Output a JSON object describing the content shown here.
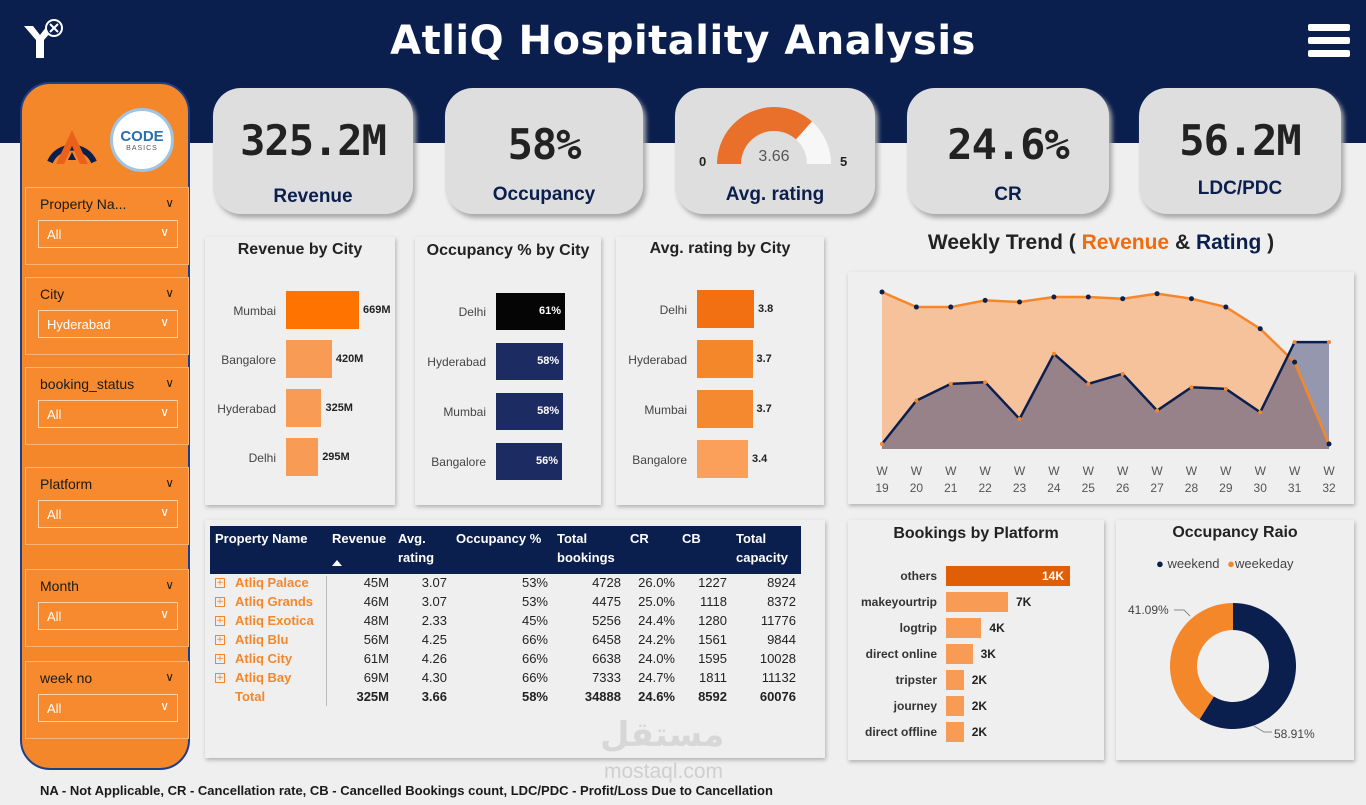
{
  "header": {
    "title": "AtliQ Hospitality Analysis"
  },
  "filters": [
    {
      "label": "Property Na...",
      "value": "All"
    },
    {
      "label": "City",
      "value": "Hyderabad"
    },
    {
      "label": "booking_status",
      "value": "All"
    },
    {
      "label": "Platform",
      "value": "All"
    },
    {
      "label": "Month",
      "value": "All"
    },
    {
      "label": "week no",
      "value": "All"
    }
  ],
  "sidebar": {
    "logo_text": "CODE",
    "logo_sub": "BASICS"
  },
  "kpis": {
    "revenue": {
      "value": "325.2M",
      "label": "Revenue"
    },
    "occupancy": {
      "value": "58%",
      "label": "Occupancy"
    },
    "rating": {
      "value": "3.66",
      "label": "Avg. rating",
      "min": "0",
      "max": "5",
      "fraction": 0.732
    },
    "cr": {
      "value": "24.6%",
      "label": "CR"
    },
    "ldc": {
      "value": "56.2M",
      "label": "LDC/PDC"
    }
  },
  "colors": {
    "navy": "#0b1f4f",
    "orange": "#f5872b",
    "orange_dark": "#f26b0c"
  },
  "chart_data": [
    {
      "type": "bar",
      "title": "Revenue by City",
      "categories": [
        "Mumbai",
        "Bangalore",
        "Hyderabad",
        "Delhi"
      ],
      "values": [
        669,
        420,
        325,
        295
      ],
      "labels": [
        "669M",
        "420M",
        "325M",
        "295M"
      ]
    },
    {
      "type": "bar",
      "title": "Occupancy % by City",
      "categories": [
        "Delhi",
        "Hyderabad",
        "Mumbai",
        "Bangalore"
      ],
      "values": [
        61,
        58,
        58,
        56
      ],
      "labels": [
        "61%",
        "58%",
        "58%",
        "56%"
      ]
    },
    {
      "type": "bar",
      "title": "Avg. rating by City",
      "categories": [
        "Delhi",
        "Hyderabad",
        "Mumbai",
        "Bangalore"
      ],
      "values": [
        3.8,
        3.7,
        3.7,
        3.4
      ],
      "labels": [
        "3.8",
        "3.7",
        "3.7",
        "3.4"
      ]
    },
    {
      "type": "area",
      "title_parts": {
        "a": "Weekly Trend ( ",
        "b": "Revenue",
        "c": " & ",
        "d": "Rating",
        "e": " )"
      },
      "x": [
        "W 19",
        "W 20",
        "W 21",
        "W 22",
        "W 23",
        "W 24",
        "W 25",
        "W 26",
        "W 27",
        "W 28",
        "W 29",
        "W 30",
        "W 31",
        "W 32"
      ],
      "x_top": [
        "W",
        "W",
        "W",
        "W",
        "W",
        "W",
        "W",
        "W",
        "W",
        "W",
        "W",
        "W",
        "W",
        "W"
      ],
      "x_bottom": [
        "19",
        "20",
        "21",
        "22",
        "23",
        "24",
        "25",
        "26",
        "27",
        "28",
        "29",
        "30",
        "31",
        "32"
      ],
      "series": [
        {
          "name": "Revenue",
          "values": [
            94,
            85,
            85,
            89,
            88,
            91,
            91,
            90,
            93,
            90,
            85,
            72,
            52,
            3
          ]
        },
        {
          "name": "Rating",
          "values": [
            3,
            29,
            39,
            40,
            18,
            57,
            39,
            45,
            23,
            37,
            36,
            22,
            64,
            64
          ]
        }
      ],
      "ylim": [
        0,
        100
      ]
    },
    {
      "type": "bar",
      "title": "Bookings by Platform",
      "categories": [
        "others",
        "makeyourtrip",
        "logtrip",
        "direct online",
        "tripster",
        "journey",
        "direct offline"
      ],
      "values": [
        14,
        7,
        4,
        3,
        2,
        2,
        2
      ],
      "labels": [
        "14K",
        "7K",
        "4K",
        "3K",
        "2K",
        "2K",
        "2K"
      ]
    },
    {
      "type": "pie",
      "title": "Occupancy Raio",
      "legend": [
        "weekend",
        "weekeday"
      ],
      "values": [
        58.91,
        41.09
      ],
      "labels": [
        "58.91%",
        "41.09%"
      ]
    }
  ],
  "table": {
    "headers": [
      "Property Name",
      "Revenue",
      "Avg. rating",
      "Occupancy %",
      "Total bookings",
      "CR",
      "CB",
      "Total capacity"
    ],
    "rows": [
      [
        "Atliq Palace",
        "45M",
        "3.07",
        "53%",
        "4728",
        "26.0%",
        "1227",
        "8924"
      ],
      [
        "Atliq Grands",
        "46M",
        "3.07",
        "53%",
        "4475",
        "25.0%",
        "1118",
        "8372"
      ],
      [
        "Atliq Exotica",
        "48M",
        "2.33",
        "45%",
        "5256",
        "24.4%",
        "1280",
        "11776"
      ],
      [
        "Atliq Blu",
        "56M",
        "4.25",
        "66%",
        "6458",
        "24.2%",
        "1561",
        "9844"
      ],
      [
        "Atliq City",
        "61M",
        "4.26",
        "66%",
        "6638",
        "24.0%",
        "1595",
        "10028"
      ],
      [
        "Atliq Bay",
        "69M",
        "4.30",
        "66%",
        "7333",
        "24.7%",
        "1811",
        "11132"
      ]
    ],
    "total": [
      "Total",
      "325M",
      "3.66",
      "58%",
      "34888",
      "24.6%",
      "8592",
      "60076"
    ]
  },
  "footer": "NA - Not Applicable, CR - Cancellation rate, CB - Cancelled Bookings count, LDC/PDC - Profit/Loss Due to Cancellation",
  "watermark": {
    "arabic": "مستقل",
    "latin": "mostaql.com"
  }
}
